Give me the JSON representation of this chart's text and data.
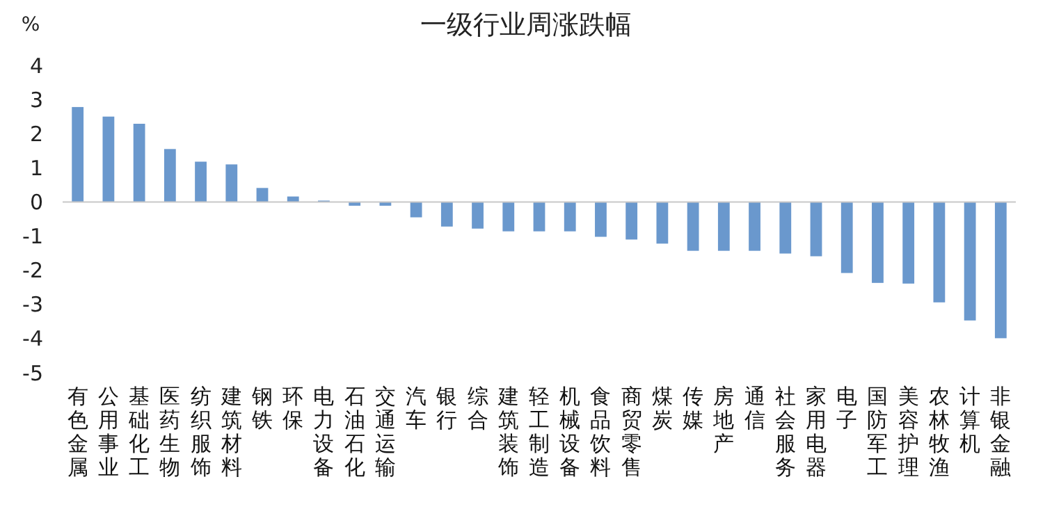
{
  "chart_data": {
    "type": "bar",
    "title": "一级行业周涨跌幅",
    "ylabel": "%",
    "categories": [
      "有色金属",
      "公用事业",
      "基础化工",
      "医药生物",
      "纺织服饰",
      "建筑材料",
      "钢铁",
      "环保",
      "电力设备",
      "石油石化",
      "交通运输",
      "汽车",
      "银行",
      "综合",
      "建筑装饰",
      "轻工制造",
      "机械设备",
      "食品饮料",
      "商贸零售",
      "煤炭",
      "传媒",
      "房地产",
      "通信",
      "社会服务",
      "家用电器",
      "电子",
      "国防军工",
      "美容护理",
      "农林牧渔",
      "计算机",
      "非银金融"
    ],
    "values": [
      2.78,
      2.5,
      2.29,
      1.55,
      1.18,
      1.1,
      0.41,
      0.16,
      0.04,
      -0.11,
      -0.11,
      -0.45,
      -0.72,
      -0.78,
      -0.86,
      -0.86,
      -0.86,
      -1.02,
      -1.1,
      -1.22,
      -1.43,
      -1.43,
      -1.43,
      -1.51,
      -1.59,
      -2.08,
      -2.37,
      -2.39,
      -2.94,
      -3.47,
      -3.99
    ],
    "color": "#6a98cd",
    "ylim": [
      -5,
      4
    ],
    "yticks": [
      -5,
      -4,
      -3,
      -2,
      -1,
      0,
      1,
      2,
      3,
      4
    ]
  }
}
